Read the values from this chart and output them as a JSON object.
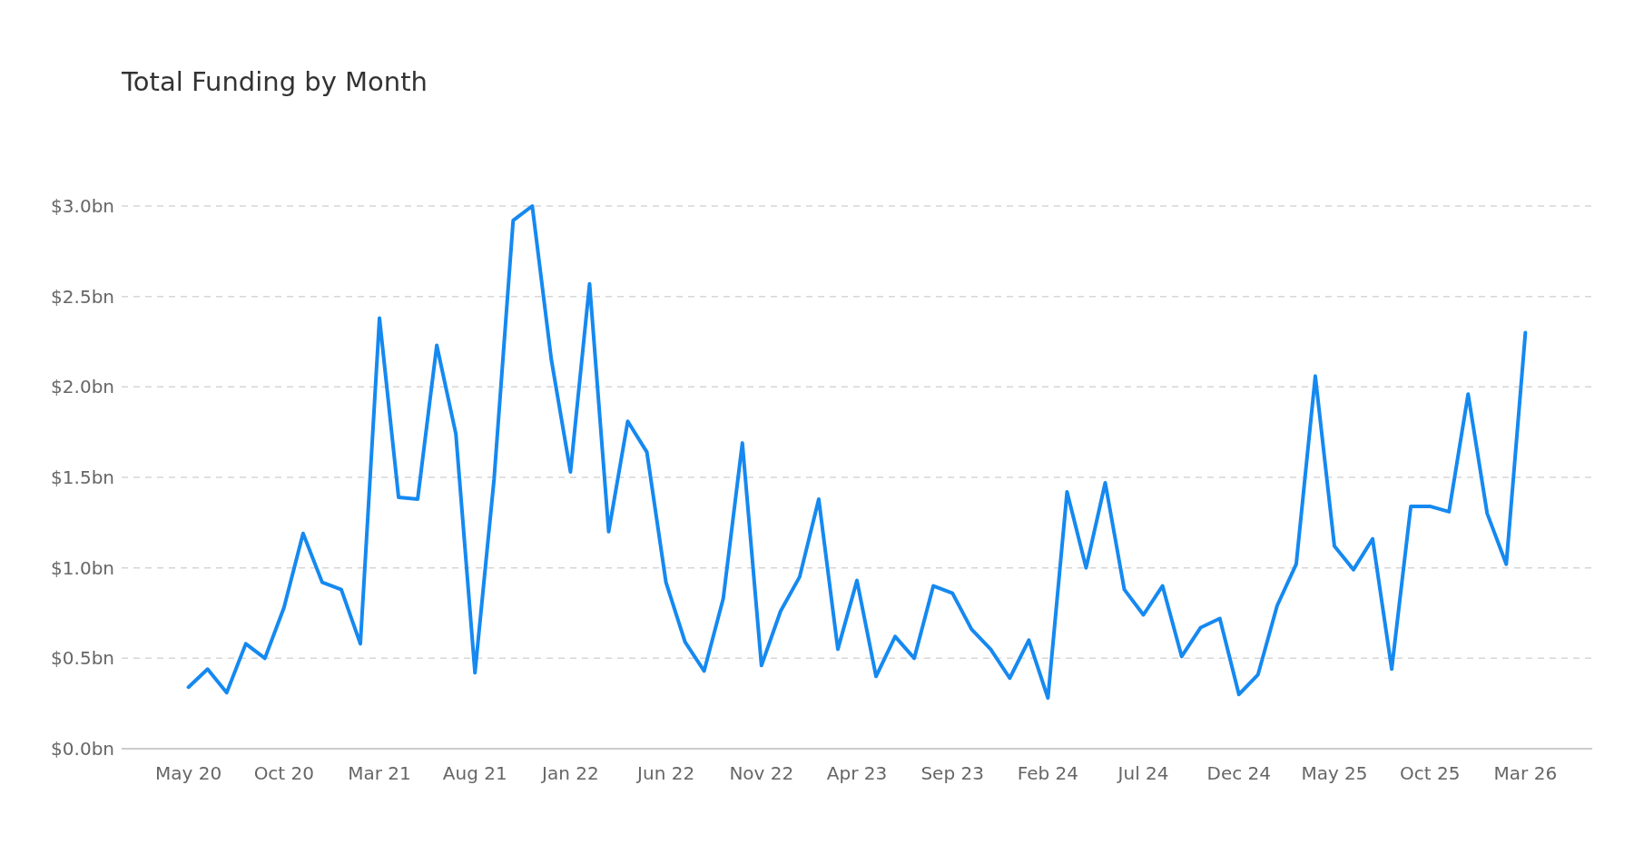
{
  "chart_data": {
    "type": "line",
    "title": "Total Funding by Month",
    "categories": [
      "May 20",
      null,
      null,
      null,
      null,
      "Oct 20",
      null,
      null,
      null,
      null,
      "Mar 21",
      null,
      null,
      null,
      null,
      "Aug 21",
      null,
      null,
      null,
      null,
      "Jan 22",
      null,
      null,
      null,
      null,
      "Jun 22",
      null,
      null,
      null,
      null,
      "Nov 22",
      null,
      null,
      null,
      null,
      "Apr 23",
      null,
      null,
      null,
      null,
      "Sep 23",
      null,
      null,
      null,
      null,
      "Feb 24",
      null,
      null,
      null,
      null,
      "Jul 24",
      null,
      null,
      null,
      null,
      "Dec 24",
      null,
      null,
      null,
      null,
      "May 25",
      null,
      null,
      null,
      null,
      "Oct 25",
      null,
      null,
      null,
      null,
      "Mar 26"
    ],
    "series": [
      {
        "color": "#1589f0",
        "values": [
          0.34,
          0.44,
          0.31,
          0.58,
          0.5,
          0.78,
          1.19,
          0.92,
          0.88,
          0.58,
          2.38,
          1.39,
          1.38,
          2.23,
          1.74,
          0.42,
          1.49,
          2.92,
          3.0,
          2.15,
          1.53,
          2.57,
          1.2,
          1.81,
          1.64,
          0.92,
          0.59,
          0.43,
          0.83,
          1.69,
          0.46,
          0.76,
          0.95,
          1.38,
          0.55,
          0.93,
          0.4,
          0.62,
          0.5,
          0.9,
          0.86,
          0.66,
          0.55,
          0.39,
          0.6,
          0.28,
          1.42,
          1.0,
          1.47,
          0.88,
          0.74,
          0.9,
          0.51,
          0.67,
          0.72,
          0.3,
          0.41,
          0.79,
          1.02,
          2.06,
          1.12,
          0.99,
          1.16,
          0.44,
          1.34,
          1.34,
          1.31,
          1.96,
          1.3,
          1.02,
          2.3
        ]
      }
    ],
    "ylim": [
      0,
      3
    ],
    "yticks": [
      {
        "value": 0,
        "label": "$0.0bn"
      },
      {
        "value": 0.5,
        "label": "$0.5bn"
      },
      {
        "value": 1,
        "label": "$1.0bn"
      },
      {
        "value": 1.5,
        "label": "$1.5bn"
      },
      {
        "value": 2,
        "label": "$2.0bn"
      },
      {
        "value": 2.5,
        "label": "$2.5bn"
      },
      {
        "value": 3,
        "label": "$3.0bn"
      }
    ],
    "grid": "y",
    "marker": "none",
    "line_style": "solid"
  }
}
